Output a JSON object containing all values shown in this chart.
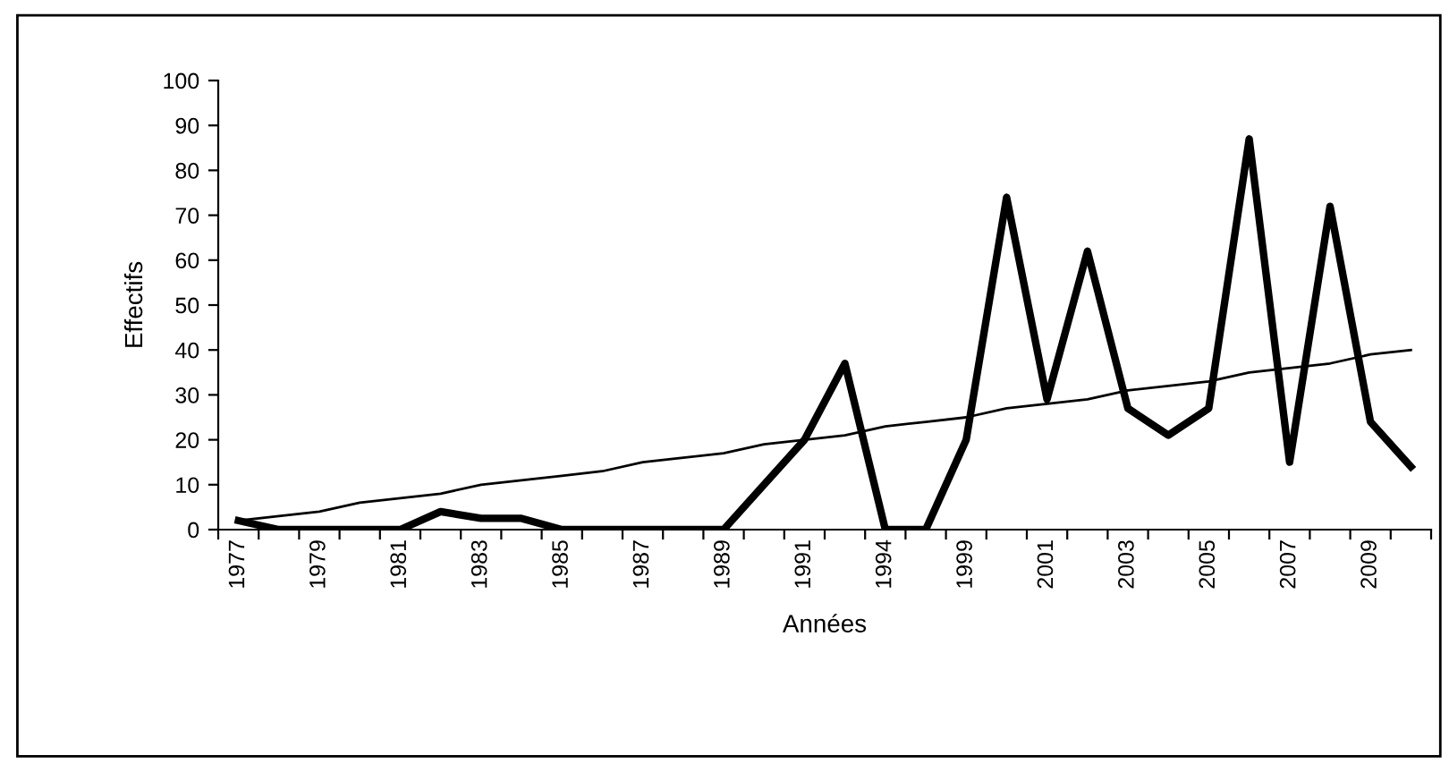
{
  "chart_data": {
    "type": "line",
    "xlabel": "Années",
    "ylabel": "Effectifs",
    "categories": [
      "1977",
      null,
      "1979",
      null,
      "1981",
      null,
      "1983",
      null,
      "1985",
      null,
      "1987",
      null,
      "1989",
      null,
      "1991",
      null,
      "1994",
      null,
      "1999",
      null,
      "2001",
      null,
      "2003",
      null,
      "2005",
      null,
      "2007",
      null,
      "2009",
      null
    ],
    "series": [
      {
        "color": "#000000",
        "values": [
          2,
          0,
          0,
          0,
          0,
          4,
          2.5,
          2.5,
          0,
          0,
          0,
          0,
          0,
          10,
          20,
          37,
          0,
          0,
          20,
          74,
          29,
          62,
          27,
          21,
          27,
          87,
          15,
          72,
          24,
          14
        ]
      },
      {
        "color": "#000000",
        "line_style": "solid",
        "values": [
          2,
          3,
          4,
          6,
          7,
          8,
          10,
          11,
          12,
          13,
          15,
          16,
          17,
          19,
          20,
          21,
          23,
          24,
          25,
          27,
          28,
          29,
          31,
          32,
          33,
          35,
          36,
          37,
          39,
          40
        ]
      }
    ],
    "ylim": [
      0,
      100
    ],
    "yticks": [
      0,
      10,
      20,
      30,
      40,
      50,
      60,
      70,
      80,
      90,
      100
    ],
    "grid": false,
    "marker": "none"
  }
}
